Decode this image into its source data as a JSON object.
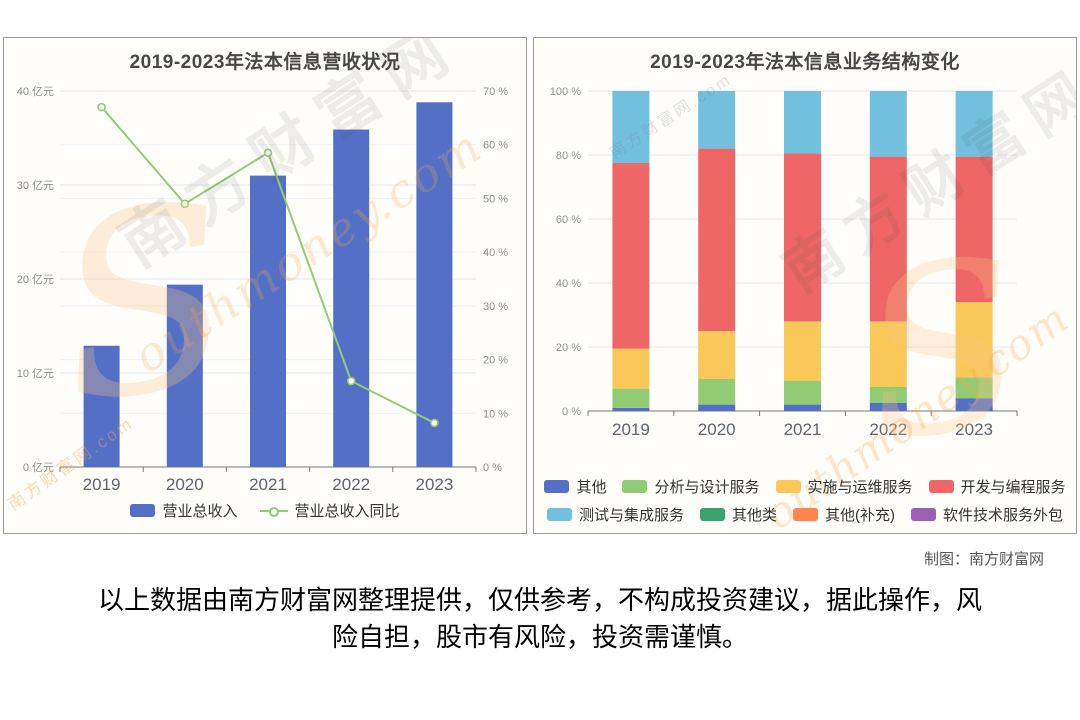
{
  "page": {
    "credit": "制图：南方财富网",
    "disclaimer": [
      "以上数据由南方财富网整理提供，仅供参考，不构成投资建议，据此操作，风",
      "险自担，股市有风险，投资需谨慎。"
    ]
  },
  "watermarks": {
    "brand_cn": "南方财富网",
    "brand_en": "outhmoney.com",
    "swoosh": "S",
    "site": "南方财富网.com"
  },
  "colors": {
    "bar_blue": "#5470C6",
    "line_green": "#91CC75",
    "grid": "#e2e8f2",
    "axis": "#76797e",
    "tick_label": "#8e8e8e",
    "x_label": "#5d646f"
  },
  "chart_data": [
    {
      "type": "bar",
      "subtype": "bar-with-line",
      "title": "2019-2023年法本信息营收状况",
      "categories": [
        "2019",
        "2020",
        "2021",
        "2022",
        "2023"
      ],
      "series": [
        {
          "name": "营业总收入",
          "kind": "bar",
          "axis": "left",
          "unit": "亿元",
          "color": "#5470C6",
          "values": [
            12.9,
            19.4,
            31.0,
            35.9,
            38.8
          ]
        },
        {
          "name": "营业总收入同比",
          "kind": "line",
          "axis": "right",
          "unit": "%",
          "color": "#91CC75",
          "values": [
            67,
            49,
            58.5,
            16,
            8.2
          ]
        }
      ],
      "y_left": {
        "min": 0,
        "max": 40,
        "step": 10,
        "unit": "亿元"
      },
      "y_right": {
        "min": 0,
        "max": 70,
        "step": 10,
        "unit": "%"
      },
      "grid": true,
      "legend_position": "bottom"
    },
    {
      "type": "bar",
      "subtype": "stacked-percent",
      "title": "2019-2023年法本信息业务结构变化",
      "categories": [
        "2019",
        "2020",
        "2021",
        "2022",
        "2023"
      ],
      "series": [
        {
          "name": "其他",
          "color": "#5470C6",
          "values": [
            1,
            2,
            2,
            2.5,
            4
          ]
        },
        {
          "name": "分析与设计服务",
          "color": "#91CC75",
          "values": [
            6,
            8,
            7.5,
            5,
            6.5
          ]
        },
        {
          "name": "实施与运维服务",
          "color": "#FAC858",
          "values": [
            12.5,
            15,
            18.5,
            20.5,
            23.5
          ]
        },
        {
          "name": "开发与编程服务",
          "color": "#EE6666",
          "values": [
            58,
            57,
            52.5,
            51.5,
            45.5
          ]
        },
        {
          "name": "测试与集成服务",
          "color": "#73C0DE",
          "values": [
            22.5,
            18,
            19.5,
            20.5,
            20.5
          ]
        },
        {
          "name": "其他类",
          "color": "#3BA272",
          "values": [
            0,
            0,
            0,
            0,
            0
          ]
        },
        {
          "name": "其他(补充)",
          "color": "#FC8452",
          "values": [
            0,
            0,
            0,
            0,
            0
          ]
        },
        {
          "name": "软件技术服务外包",
          "color": "#9A60B4",
          "values": [
            0,
            0,
            0,
            0,
            0
          ]
        }
      ],
      "y": {
        "min": 0,
        "max": 100,
        "step": 20,
        "unit": "%"
      },
      "legend_rows": [
        [
          0,
          1,
          2,
          3
        ],
        [
          4,
          5,
          6,
          7
        ]
      ],
      "grid": true,
      "legend_position": "bottom"
    }
  ]
}
